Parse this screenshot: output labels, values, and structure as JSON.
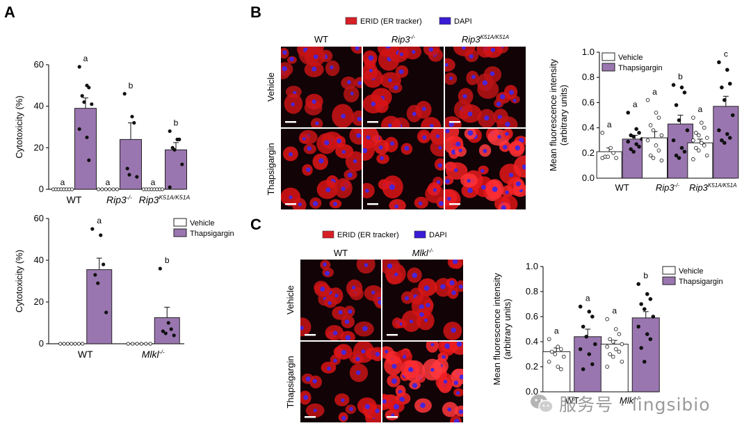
{
  "watermark": {
    "text": "服务号 · lingsibio"
  },
  "colors": {
    "vehicle": "#ffffff",
    "thap": "#9a76b0",
    "erid": "#d71f26",
    "dapi": "#3a1bd6",
    "axis": "#222222"
  },
  "panels": {
    "A": "A",
    "B": "B",
    "C": "C"
  },
  "legend": {
    "vehicle": "Vehicle",
    "thap": "Thapsigargin",
    "erid": "ERID (ER tracker)",
    "dapi": "DAPI"
  },
  "micro": {
    "B": {
      "cols": [
        "WT",
        "Rip3",
        "Rip3"
      ],
      "colsup": [
        "",
        "-/-",
        "K51A/K51A"
      ],
      "rows": [
        "Vehicle",
        "Thapsigargin"
      ]
    },
    "C": {
      "cols": [
        "WT",
        "Mlkl"
      ],
      "colsup": [
        "",
        "-/-"
      ],
      "rows": [
        "Vehicle",
        "Thapsigargin"
      ]
    }
  },
  "chart_data": [
    {
      "id": "A-top",
      "type": "bar",
      "ylabel": "Cytotoxicity (%)",
      "ylim": [
        0,
        60
      ],
      "yticks": [
        0,
        20,
        40,
        60
      ],
      "groups": [
        {
          "name": "WT",
          "sup": ""
        },
        {
          "name": "Rip3",
          "sup": "-/-"
        },
        {
          "name": "Rip3",
          "sup": "K51A/K51A"
        }
      ],
      "series": [
        {
          "name": "Vehicle",
          "values": [
            0,
            0,
            0
          ],
          "err": [
            0,
            0,
            0
          ],
          "letters": [
            "a",
            "a",
            "a"
          ],
          "points": [
            [
              0,
              0,
              0,
              0,
              0,
              0,
              0,
              0
            ],
            [
              0,
              0,
              0,
              0,
              0,
              0
            ],
            [
              0,
              0,
              0,
              0,
              0,
              0,
              0,
              0
            ]
          ]
        },
        {
          "name": "Thapsigargin",
          "values": [
            39,
            24,
            19
          ],
          "err": [
            5,
            8,
            3.5
          ],
          "letters": [
            "a",
            "b",
            "b"
          ],
          "points": [
            [
              59,
              50,
              49,
              45,
              42,
              41,
              29,
              25,
              14
            ],
            [
              46,
              35,
              32,
              10,
              7,
              6
            ],
            [
              28,
              24,
              24,
              20,
              19,
              12,
              1
            ]
          ]
        }
      ]
    },
    {
      "id": "A-bottom",
      "type": "bar",
      "ylabel": "Cytotoxicity (%)",
      "ylim": [
        0,
        60
      ],
      "yticks": [
        0,
        20,
        40,
        60
      ],
      "groups": [
        {
          "name": "WT",
          "sup": ""
        },
        {
          "name": "Mlkl",
          "sup": "-/-"
        }
      ],
      "legend": [
        "Vehicle",
        "Thapsigargin"
      ],
      "series": [
        {
          "name": "Vehicle",
          "values": [
            0,
            0
          ],
          "err": [
            0,
            0
          ],
          "letters": [
            "",
            ""
          ],
          "points": [
            [
              0,
              0,
              0,
              0,
              0,
              0,
              0
            ],
            [
              0,
              0,
              0,
              0,
              0,
              0
            ]
          ]
        },
        {
          "name": "Thapsigargin",
          "values": [
            35.5,
            12.5
          ],
          "err": [
            5.5,
            5
          ],
          "letters": [
            "a",
            "b"
          ],
          "points": [
            [
              55,
              52,
              38,
              33,
              29,
              15
            ],
            [
              36,
              10,
              7,
              6,
              5,
              4
            ]
          ]
        }
      ]
    },
    {
      "id": "B",
      "type": "bar",
      "ylabel": "Mean fluorescence intensity",
      "ylabel2": "(arbitrary units)",
      "ylim": [
        0,
        1.0
      ],
      "yticks": [
        0.0,
        0.2,
        0.4,
        0.6,
        0.8,
        1.0
      ],
      "groups": [
        {
          "name": "WT",
          "sup": ""
        },
        {
          "name": "Rip3",
          "sup": "-/-"
        },
        {
          "name": "Rip3",
          "sup": "K51A/K51A"
        }
      ],
      "legend": [
        "Vehicle",
        "Thapsigargin"
      ],
      "series": [
        {
          "name": "Vehicle",
          "values": [
            0.21,
            0.32,
            0.28
          ],
          "err": [
            0.03,
            0.05,
            0.03
          ],
          "letters": [
            "a",
            "a",
            "a"
          ],
          "points": [
            [
              0.36,
              0.24,
              0.2,
              0.17,
              0.17,
              0.16,
              0.16
            ],
            [
              0.62,
              0.52,
              0.48,
              0.42,
              0.38,
              0.34,
              0.3,
              0.26,
              0.22,
              0.18,
              0.16,
              0.14
            ],
            [
              0.48,
              0.44,
              0.4,
              0.36,
              0.34,
              0.32,
              0.3,
              0.28,
              0.26,
              0.24,
              0.22,
              0.18,
              0.15
            ]
          ]
        },
        {
          "name": "Thapsigargin",
          "values": [
            0.31,
            0.43,
            0.57
          ],
          "err": [
            0.03,
            0.07,
            0.08
          ],
          "letters": [
            "a",
            "b",
            "c"
          ],
          "points": [
            [
              0.52,
              0.39,
              0.36,
              0.34,
              0.33,
              0.31,
              0.29,
              0.27,
              0.25,
              0.23,
              0.21
            ],
            [
              0.74,
              0.72,
              0.68,
              0.58,
              0.46,
              0.38,
              0.3,
              0.24,
              0.21,
              0.18,
              0.16
            ],
            [
              0.92,
              0.86,
              0.75,
              0.72,
              0.62,
              0.5,
              0.38,
              0.35,
              0.32,
              0.3,
              0.28
            ]
          ]
        }
      ]
    },
    {
      "id": "C",
      "type": "bar",
      "ylabel": "Mean fluorescence intensity",
      "ylabel2": "(arbitrary units)",
      "ylim": [
        0,
        1.0
      ],
      "yticks": [
        0.0,
        0.2,
        0.4,
        0.6,
        0.8,
        1.0
      ],
      "groups": [
        {
          "name": "WT",
          "sup": ""
        },
        {
          "name": "Mlkl",
          "sup": "-/-"
        }
      ],
      "legend": [
        "Vehicle",
        "Thapsigargin"
      ],
      "series": [
        {
          "name": "Vehicle",
          "values": [
            0.32,
            0.38
          ],
          "err": [
            0.03,
            0.03
          ],
          "letters": [
            "a",
            "a"
          ],
          "points": [
            [
              0.42,
              0.36,
              0.34,
              0.32,
              0.3,
              0.28,
              0.24,
              0.2,
              0.18
            ],
            [
              0.58,
              0.5,
              0.46,
              0.42,
              0.4,
              0.38,
              0.36,
              0.34,
              0.32,
              0.3,
              0.28,
              0.24,
              0.2
            ]
          ]
        },
        {
          "name": "Thapsigargin",
          "values": [
            0.44,
            0.59
          ],
          "err": [
            0.06,
            0.05
          ],
          "letters": [
            "a",
            "b"
          ],
          "points": [
            [
              0.68,
              0.64,
              0.6,
              0.52,
              0.44,
              0.38,
              0.34,
              0.3,
              0.22,
              0.18
            ],
            [
              0.86,
              0.78,
              0.74,
              0.7,
              0.66,
              0.6,
              0.52,
              0.46,
              0.42,
              0.35,
              0.24
            ]
          ]
        }
      ]
    }
  ]
}
